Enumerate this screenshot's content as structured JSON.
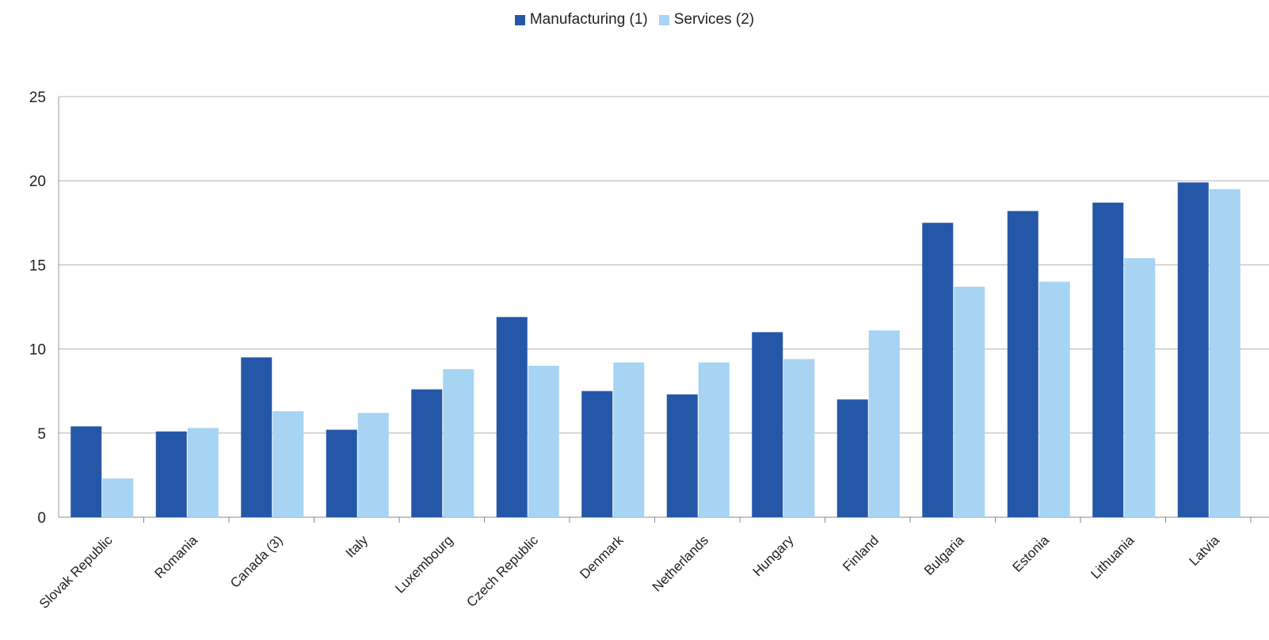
{
  "chart_data": {
    "type": "bar",
    "title": "",
    "xlabel": "",
    "ylabel": "",
    "ylim": [
      0,
      25
    ],
    "yticks": [
      "0",
      "5",
      "10",
      "15",
      "20",
      "25"
    ],
    "grid": true,
    "legend_position": "top-center",
    "categories": [
      "Slovak Republic",
      "Romania",
      "Canada (3)",
      "Italy",
      "Luxembourg",
      "Czech Republic",
      "Denmark",
      "Netherlands",
      "Hungary",
      "Finland",
      "Bulgaria",
      "Estonia",
      "Lithuania",
      "Latvia"
    ],
    "series": [
      {
        "name": "Manufacturing (1)",
        "color": "#2457a8",
        "values": [
          5.4,
          5.1,
          9.5,
          5.2,
          7.6,
          11.9,
          7.5,
          7.3,
          11.0,
          7.0,
          17.5,
          18.2,
          18.7,
          19.9
        ]
      },
      {
        "name": "Services (2)",
        "color": "#a6d4f2",
        "values": [
          2.3,
          5.3,
          6.3,
          6.2,
          8.8,
          9.0,
          9.2,
          9.2,
          9.4,
          11.1,
          13.7,
          14.0,
          15.4,
          19.5
        ]
      }
    ]
  }
}
